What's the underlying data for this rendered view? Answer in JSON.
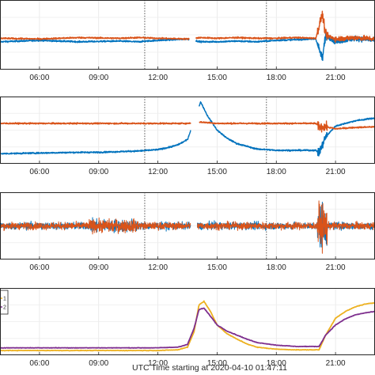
{
  "figure": {
    "xlabel": "UTC Time starting at 2020-04-10 01:47:11"
  },
  "chart_data": [
    {
      "type": "scatter",
      "panel": 1,
      "x_range": [
        "04:00",
        "23:00"
      ],
      "x_ticks": [
        "06:00",
        "09:00",
        "12:00",
        "15:00",
        "18:00",
        "21:00"
      ],
      "grid": true,
      "event_markers": [
        "11:20",
        "17:30"
      ],
      "gap": [
        "13:35",
        "13:55"
      ],
      "series": [
        {
          "color": "#0072bd",
          "x": [
            "04:00",
            "06:00",
            "08:00",
            "10:00",
            "11:00",
            "12:00",
            "13:30",
            "14:10",
            "15:00",
            "16:00",
            "17:00",
            "18:00",
            "19:00",
            "20:00",
            "20:20",
            "20:30",
            "21:00",
            "22:00",
            "23:00"
          ],
          "y": [
            0.4,
            0.42,
            0.4,
            0.41,
            0.4,
            0.42,
            0.44,
            0.4,
            0.4,
            0.41,
            0.4,
            0.42,
            0.43,
            0.44,
            0.15,
            0.5,
            0.4,
            0.45,
            0.42
          ]
        },
        {
          "color": "#d95319",
          "x": [
            "04:00",
            "06:00",
            "08:00",
            "10:00",
            "11:00",
            "12:00",
            "13:30",
            "14:10",
            "15:00",
            "16:00",
            "17:00",
            "18:00",
            "19:00",
            "20:00",
            "20:20",
            "20:30",
            "21:00",
            "22:00",
            "23:00"
          ],
          "y": [
            0.45,
            0.44,
            0.46,
            0.45,
            0.46,
            0.45,
            0.44,
            0.46,
            0.45,
            0.46,
            0.45,
            0.45,
            0.46,
            0.45,
            0.8,
            0.5,
            0.44,
            0.46,
            0.44
          ]
        }
      ]
    },
    {
      "type": "scatter",
      "panel": 2,
      "x_range": [
        "04:00",
        "23:00"
      ],
      "x_ticks": [
        "06:00",
        "09:00",
        "12:00",
        "15:00",
        "18:00",
        "21:00"
      ],
      "grid": true,
      "event_markers": [
        "11:20",
        "17:30"
      ],
      "gap": [
        "13:40",
        "14:05"
      ],
      "series": [
        {
          "color": "#0072bd",
          "x": [
            "04:00",
            "06:00",
            "08:00",
            "09:00",
            "10:00",
            "11:00",
            "12:00",
            "12:30",
            "13:00",
            "13:30",
            "14:10",
            "14:30",
            "15:00",
            "15:30",
            "16:00",
            "17:00",
            "18:00",
            "19:00",
            "20:00",
            "20:10",
            "20:30",
            "21:00",
            "22:00",
            "23:00"
          ],
          "y": [
            0.15,
            0.16,
            0.17,
            0.17,
            0.18,
            0.19,
            0.21,
            0.24,
            0.28,
            0.36,
            0.92,
            0.72,
            0.5,
            0.38,
            0.3,
            0.22,
            0.2,
            0.2,
            0.2,
            0.16,
            0.4,
            0.56,
            0.64,
            0.68
          ]
        },
        {
          "color": "#d95319",
          "x": [
            "04:00",
            "06:00",
            "08:00",
            "10:00",
            "12:00",
            "13:30",
            "14:10",
            "15:00",
            "16:00",
            "17:00",
            "18:00",
            "19:00",
            "20:00",
            "20:10",
            "20:30",
            "21:00",
            "22:00",
            "23:00"
          ],
          "y": [
            0.6,
            0.6,
            0.6,
            0.6,
            0.6,
            0.6,
            0.62,
            0.6,
            0.6,
            0.6,
            0.6,
            0.6,
            0.6,
            0.55,
            0.55,
            0.52,
            0.54,
            0.55
          ]
        }
      ]
    },
    {
      "type": "scatter",
      "panel": 3,
      "x_range": [
        "04:00",
        "23:00"
      ],
      "x_ticks": [
        "06:00",
        "09:00",
        "12:00",
        "15:00",
        "18:00",
        "21:00"
      ],
      "grid": true,
      "event_markers": [
        "11:20",
        "17:30"
      ],
      "gap": [
        "13:40",
        "14:00"
      ],
      "series": [
        {
          "color": "#0072bd",
          "x": [
            "04:00",
            "23:00"
          ],
          "y": [
            0.5,
            0.5
          ]
        },
        {
          "color": "#d95319",
          "x": [
            "04:00",
            "23:00"
          ],
          "y": [
            0.5,
            0.5
          ]
        }
      ]
    },
    {
      "type": "line",
      "panel": 4,
      "x_range": [
        "04:00",
        "23:00"
      ],
      "x_ticks": [
        "06:00",
        "09:00",
        "12:00",
        "15:00",
        "18:00",
        "21:00"
      ],
      "grid": true,
      "legend": {
        "location": "top-left",
        "entries": [
          "1",
          "2"
        ]
      },
      "series": [
        {
          "name": "1",
          "color": "#edb120",
          "x": [
            "04:00",
            "06:00",
            "08:00",
            "10:00",
            "12:00",
            "13:00",
            "13:30",
            "13:50",
            "14:05",
            "14:20",
            "14:40",
            "15:00",
            "15:30",
            "16:00",
            "16:30",
            "17:00",
            "18:00",
            "19:00",
            "20:00",
            "20:10",
            "20:30",
            "21:00",
            "21:30",
            "22:00",
            "22:30",
            "23:00"
          ],
          "y": [
            0.07,
            0.07,
            0.07,
            0.07,
            0.07,
            0.08,
            0.12,
            0.35,
            0.75,
            0.8,
            0.65,
            0.45,
            0.32,
            0.24,
            0.17,
            0.12,
            0.09,
            0.08,
            0.08,
            0.08,
            0.3,
            0.55,
            0.65,
            0.72,
            0.76,
            0.78
          ]
        },
        {
          "name": "2",
          "color": "#7e2f8e",
          "x": [
            "04:00",
            "06:00",
            "08:00",
            "10:00",
            "12:00",
            "13:00",
            "13:30",
            "13:50",
            "14:05",
            "14:20",
            "14:40",
            "15:00",
            "15:30",
            "16:00",
            "16:30",
            "17:00",
            "18:00",
            "19:00",
            "20:00",
            "20:10",
            "20:30",
            "21:00",
            "21:30",
            "22:00",
            "22:30",
            "23:00"
          ],
          "y": [
            0.11,
            0.11,
            0.11,
            0.11,
            0.11,
            0.12,
            0.16,
            0.4,
            0.68,
            0.7,
            0.58,
            0.45,
            0.36,
            0.3,
            0.24,
            0.19,
            0.15,
            0.13,
            0.13,
            0.13,
            0.3,
            0.45,
            0.54,
            0.6,
            0.63,
            0.65
          ]
        }
      ]
    }
  ]
}
